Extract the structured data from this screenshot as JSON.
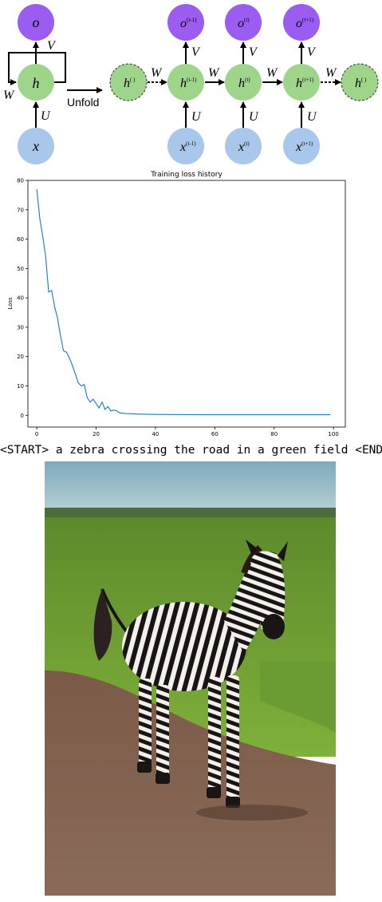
{
  "rnn_diagram": {
    "folded": {
      "output": "o",
      "hidden": "h",
      "input": "x",
      "w_label": "W",
      "u_label": "U",
      "v_label": "V"
    },
    "unfold_label": "Unfold",
    "unfolded": {
      "h_prev_outer": "h",
      "h_prev_outer_sup": "( )",
      "h_next_outer": "h",
      "h_next_outer_sup": "( )",
      "steps": [
        {
          "o": "o",
          "o_sup": "(t-1)",
          "h": "h",
          "h_sup": "(t-1)",
          "x": "x",
          "x_sup": "(t-1)"
        },
        {
          "o": "o",
          "o_sup": "(t)",
          "h": "h",
          "h_sup": "(t)",
          "x": "x",
          "x_sup": "(t)"
        },
        {
          "o": "o",
          "o_sup": "(t+1)",
          "h": "h",
          "h_sup": "(t+1)",
          "x": "x",
          "x_sup": "(t+1)"
        }
      ],
      "w_label": "W",
      "u_label": "U",
      "v_label": "V"
    },
    "colors": {
      "output": "#9b5cf2",
      "hidden": "#9ed58a",
      "input": "#a9c7eb"
    }
  },
  "chart_data": {
    "type": "line",
    "title": "Training loss history",
    "xlabel": "",
    "ylabel": "Loss",
    "xlim": [
      -3,
      104
    ],
    "ylim": [
      -4,
      80
    ],
    "xticks": [
      0,
      20,
      40,
      60,
      80,
      100
    ],
    "yticks": [
      0,
      10,
      20,
      30,
      40,
      50,
      60,
      70,
      80
    ],
    "grid": false,
    "series": [
      {
        "color": "#1f77b4",
        "x": [
          0,
          1,
          2,
          3,
          4,
          5,
          6,
          7,
          8,
          9,
          10,
          11,
          12,
          13,
          14,
          15,
          16,
          17,
          18,
          19,
          20,
          21,
          22,
          23,
          24,
          25,
          26,
          27,
          28,
          30,
          35,
          40,
          50,
          60,
          70,
          80,
          90,
          99
        ],
        "y": [
          77,
          67,
          61,
          54,
          42,
          42.5,
          37,
          33,
          27,
          22,
          21.5,
          19.5,
          17,
          14,
          11,
          10,
          10.5,
          6,
          4.5,
          5.5,
          4,
          2.5,
          4.5,
          2,
          3,
          1.5,
          1.8,
          1.5,
          0.8,
          0.6,
          0.4,
          0.3,
          0.25,
          0.2,
          0.2,
          0.2,
          0.2,
          0.2
        ]
      }
    ]
  },
  "caption": "<START> a zebra crossing the road in a green field <END>",
  "photo": {
    "subject": "zebra",
    "colors": {
      "sky": "#9fc2cc",
      "grass": "#6f9a2e",
      "road": "#7a5b4a"
    }
  }
}
